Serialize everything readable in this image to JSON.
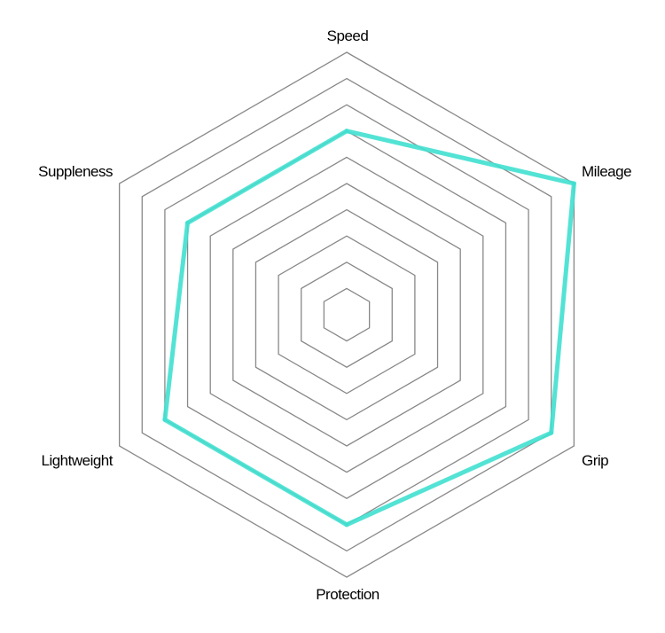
{
  "chart_data": {
    "type": "radar",
    "categories": [
      "Speed",
      "Mileage",
      "Grip",
      "Protection",
      "Lightweight",
      "Suppleness"
    ],
    "series": [
      {
        "values": [
          7,
          10,
          9,
          8,
          8,
          7
        ],
        "color": "#40E0D0"
      }
    ],
    "range": [
      0,
      10
    ],
    "grid_levels": 10,
    "grid_color": "#888888",
    "legend": "none"
  }
}
